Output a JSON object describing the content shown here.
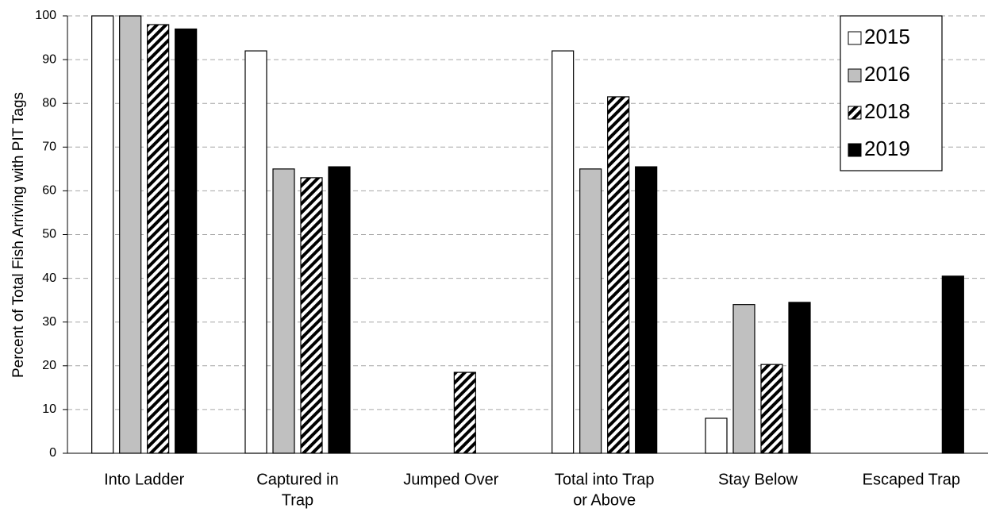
{
  "chart_data": {
    "type": "bar",
    "y_label": "Percent of Total Fish Arriving with PIT Tags",
    "categories": [
      [
        "Into Ladder"
      ],
      [
        "Captured in",
        "Trap"
      ],
      [
        "Jumped Over"
      ],
      [
        "Total into Trap",
        "or Above"
      ],
      [
        "Stay Below"
      ],
      [
        "Escaped Trap"
      ]
    ],
    "series": [
      {
        "name": "2015",
        "color": "#ffffff",
        "values": [
          100,
          92,
          null,
          92,
          8,
          null
        ]
      },
      {
        "name": "2016",
        "color": "#c0c0c0",
        "values": [
          100,
          65,
          null,
          65,
          34,
          null
        ]
      },
      {
        "name": "2018",
        "color": "#ffffff",
        "pattern": "diagonal",
        "values": [
          98,
          63,
          18.5,
          81.5,
          20.3,
          null
        ]
      },
      {
        "name": "2019",
        "color": "#000000",
        "values": [
          97,
          65.5,
          null,
          65.5,
          34.5,
          40.5
        ]
      }
    ],
    "ylim": [
      0,
      100
    ],
    "yticks": [
      0,
      10,
      20,
      30,
      40,
      50,
      60,
      70,
      80,
      90,
      100
    ],
    "grid": true,
    "legend": "top-right"
  }
}
